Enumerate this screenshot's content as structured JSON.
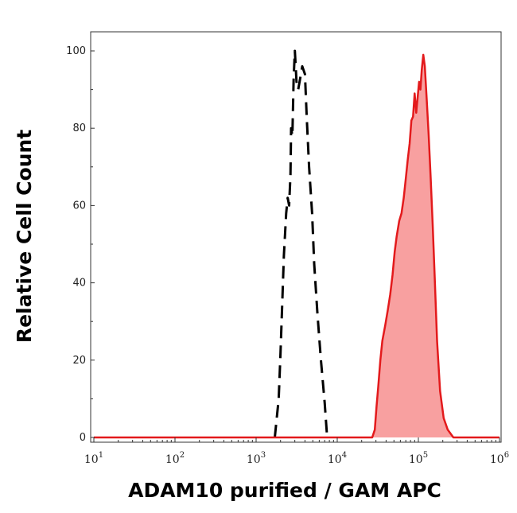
{
  "chart_data": {
    "type": "area",
    "xlabel": "ADAM10 purified / GAM APC",
    "ylabel": "Relative Cell Count",
    "xscale": "log",
    "xlim": [
      10,
      1000000
    ],
    "ylim": [
      0,
      100
    ],
    "yticks": [
      0,
      20,
      40,
      60,
      80,
      100
    ],
    "xtick_labels": [
      {
        "value": 10,
        "base": "10",
        "exp": "1"
      },
      {
        "value": 100,
        "base": "10",
        "exp": "2"
      },
      {
        "value": 1000,
        "base": "10",
        "exp": "3"
      },
      {
        "value": 10000,
        "base": "10",
        "exp": "4"
      },
      {
        "value": 100000,
        "base": "10",
        "exp": "5"
      },
      {
        "value": 1000000,
        "base": "10",
        "exp": "6"
      }
    ],
    "grid": false,
    "series": [
      {
        "style": "dashed",
        "color": "#000000",
        "fill": "none",
        "points": [
          [
            1700,
            0
          ],
          [
            1900,
            10
          ],
          [
            2000,
            22
          ],
          [
            2100,
            35
          ],
          [
            2200,
            47
          ],
          [
            2350,
            58
          ],
          [
            2450,
            62
          ],
          [
            2550,
            60
          ],
          [
            2650,
            68
          ],
          [
            2700,
            80
          ],
          [
            2800,
            78
          ],
          [
            2900,
            93
          ],
          [
            3000,
            100
          ],
          [
            3150,
            92
          ],
          [
            3300,
            90
          ],
          [
            3500,
            93
          ],
          [
            3700,
            96
          ],
          [
            4000,
            94
          ],
          [
            4200,
            83
          ],
          [
            4500,
            70
          ],
          [
            4900,
            58
          ],
          [
            5200,
            45
          ],
          [
            5700,
            32
          ],
          [
            6300,
            20
          ],
          [
            7000,
            9
          ],
          [
            7500,
            0
          ]
        ]
      },
      {
        "style": "solid",
        "color": "#e31a1c",
        "fill": "#f8a0a0",
        "points": [
          [
            10,
            0
          ],
          [
            100,
            0
          ],
          [
            1000,
            0
          ],
          [
            10000,
            0
          ],
          [
            27000,
            0
          ],
          [
            29000,
            2
          ],
          [
            30500,
            8
          ],
          [
            32000,
            13
          ],
          [
            34000,
            20
          ],
          [
            36000,
            25
          ],
          [
            39000,
            29
          ],
          [
            42000,
            33
          ],
          [
            45000,
            37
          ],
          [
            48000,
            42
          ],
          [
            51000,
            48
          ],
          [
            54000,
            52
          ],
          [
            58000,
            56
          ],
          [
            62000,
            58
          ],
          [
            66000,
            62
          ],
          [
            70000,
            67
          ],
          [
            74000,
            72
          ],
          [
            78000,
            76
          ],
          [
            82000,
            82
          ],
          [
            86000,
            83
          ],
          [
            90000,
            89
          ],
          [
            94000,
            84
          ],
          [
            98000,
            88
          ],
          [
            102000,
            92
          ],
          [
            106000,
            90
          ],
          [
            110000,
            95
          ],
          [
            115000,
            99
          ],
          [
            120000,
            96
          ],
          [
            127000,
            87
          ],
          [
            134000,
            78
          ],
          [
            142000,
            67
          ],
          [
            150000,
            55
          ],
          [
            160000,
            40
          ],
          [
            170000,
            25
          ],
          [
            185000,
            12
          ],
          [
            205000,
            5
          ],
          [
            230000,
            2
          ],
          [
            270000,
            0
          ],
          [
            500000,
            0
          ],
          [
            1000000,
            0
          ]
        ]
      }
    ]
  }
}
